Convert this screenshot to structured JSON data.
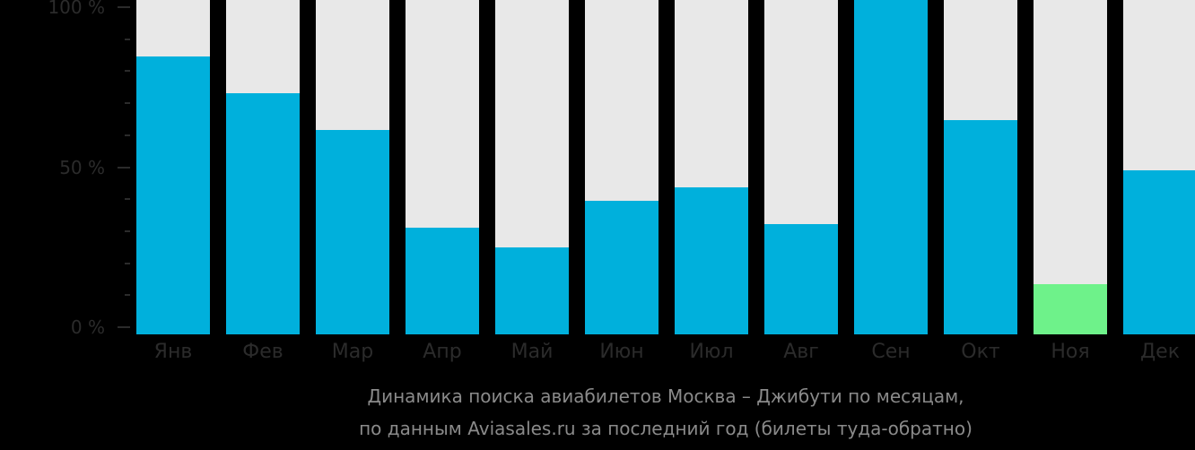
{
  "chart_data": {
    "type": "bar",
    "title": "Динамика поиска авиабилетов Москва – Джибути по месяцам,",
    "subtitle": "по данным Aviasales.ru за последний год (билеты туда-обратно)",
    "categories": [
      "Янв",
      "Фев",
      "Мар",
      "Апр",
      "Май",
      "Июн",
      "Июл",
      "Авг",
      "Сен",
      "Окт",
      "Ноя",
      "Дек"
    ],
    "values": [
      83,
      72,
      61,
      32,
      26,
      40,
      44,
      33,
      100,
      64,
      15,
      49
    ],
    "xlabel": "",
    "ylabel": "",
    "ylim": [
      0,
      100
    ],
    "yticks": [
      "0 %",
      "50 %",
      "100 %"
    ],
    "grid": false,
    "legend": null,
    "colors": {
      "bar": "#00b0dc",
      "highlight_min": "#6ef28a",
      "bar_background": "#e8e8e8",
      "background": "#000000"
    },
    "highlighted_category": "Ноя"
  }
}
